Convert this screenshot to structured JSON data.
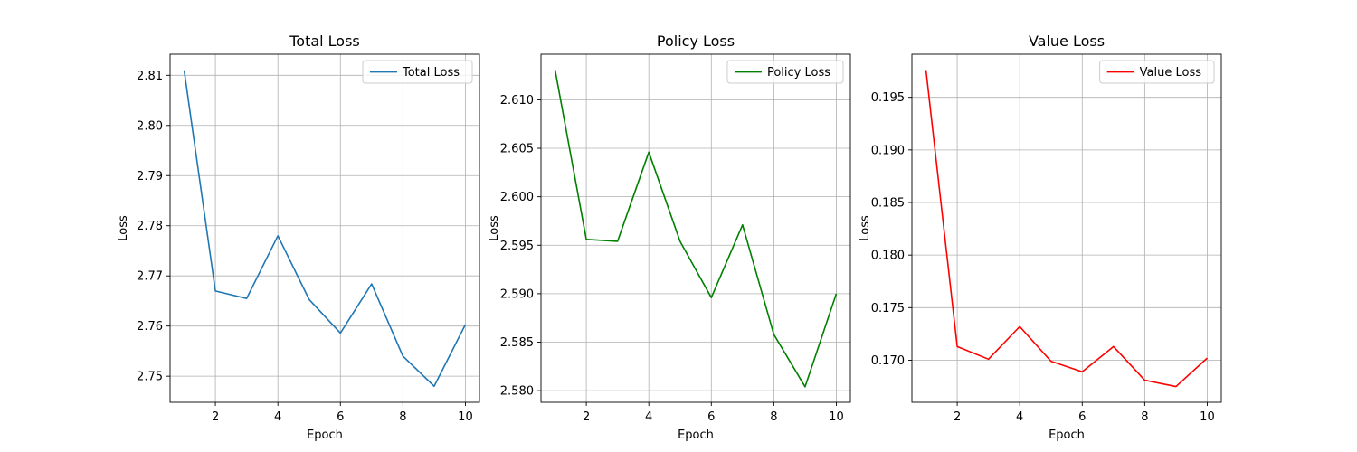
{
  "chart_data": [
    {
      "type": "line",
      "title": "Total Loss",
      "xlabel": "Epoch",
      "ylabel": "Loss",
      "x": [
        1,
        2,
        3,
        4,
        5,
        6,
        7,
        8,
        9,
        10
      ],
      "series": [
        {
          "name": "Total Loss",
          "color": "#1f77b4",
          "values": [
            2.811,
            2.767,
            2.7655,
            2.778,
            2.7653,
            2.7586,
            2.7684,
            2.754,
            2.748,
            2.7603
          ]
        }
      ],
      "xlim": [
        0.55,
        10.45
      ],
      "ylim": [
        2.7448,
        2.8142
      ],
      "xticks": [
        2,
        4,
        6,
        8,
        10
      ],
      "yticks": [
        2.75,
        2.76,
        2.77,
        2.78,
        2.79,
        2.8,
        2.81
      ],
      "ytick_labels": [
        "2.75",
        "2.76",
        "2.77",
        "2.78",
        "2.79",
        "2.80",
        "2.81"
      ],
      "grid": true,
      "legend": "top-right"
    },
    {
      "type": "line",
      "title": "Policy Loss",
      "xlabel": "Epoch",
      "ylabel": "Loss",
      "x": [
        1,
        2,
        3,
        4,
        5,
        6,
        7,
        8,
        9,
        10
      ],
      "series": [
        {
          "name": "Policy Loss",
          "color": "#008000",
          "values": [
            2.6131,
            2.5956,
            2.5954,
            2.6046,
            2.5954,
            2.5896,
            2.5971,
            2.5858,
            2.5804,
            2.59
          ]
        }
      ],
      "xlim": [
        0.55,
        10.45
      ],
      "ylim": [
        2.5788,
        2.6147
      ],
      "xticks": [
        2,
        4,
        6,
        8,
        10
      ],
      "yticks": [
        2.58,
        2.585,
        2.59,
        2.595,
        2.6,
        2.605,
        2.61
      ],
      "ytick_labels": [
        "2.580",
        "2.585",
        "2.590",
        "2.595",
        "2.600",
        "2.605",
        "2.610"
      ],
      "grid": true,
      "legend": "top-right"
    },
    {
      "type": "line",
      "title": "Value Loss",
      "xlabel": "Epoch",
      "ylabel": "Loss",
      "x": [
        1,
        2,
        3,
        4,
        5,
        6,
        7,
        8,
        9,
        10
      ],
      "series": [
        {
          "name": "Value Loss",
          "color": "#ff0000",
          "values": [
            0.1976,
            0.1713,
            0.1701,
            0.1732,
            0.1699,
            0.1689,
            0.1713,
            0.1681,
            0.1675,
            0.1702
          ]
        }
      ],
      "xlim": [
        0.55,
        10.45
      ],
      "ylim": [
        0.166,
        0.1991
      ],
      "xticks": [
        2,
        4,
        6,
        8,
        10
      ],
      "yticks": [
        0.17,
        0.175,
        0.18,
        0.185,
        0.19,
        0.195
      ],
      "ytick_labels": [
        "0.170",
        "0.175",
        "0.180",
        "0.185",
        "0.190",
        "0.195"
      ],
      "grid": true,
      "legend": "top-right"
    }
  ]
}
